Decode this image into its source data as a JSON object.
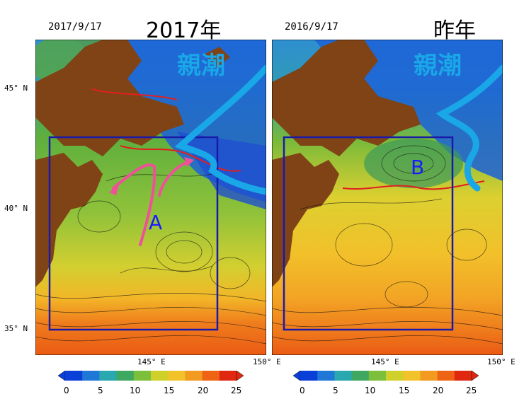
{
  "panels": [
    {
      "date": "2017/9/17",
      "title": "2017年",
      "current_label": "親潮",
      "marker": "A",
      "marker_color": "#1a1aff",
      "lat_labels": [
        "45° N",
        "40° N",
        "35° N"
      ],
      "lon_labels": [
        "145° E",
        "150° E"
      ]
    },
    {
      "date": "2016/9/17",
      "title": "昨年",
      "current_label": "親潮",
      "marker": "B",
      "marker_color": "#1a1aff",
      "lat_labels": [],
      "lon_labels": [
        "145° E",
        "150° E"
      ]
    }
  ],
  "colorbar": {
    "ticks": [
      "0",
      "5",
      "10",
      "15",
      "20",
      "25"
    ],
    "min": 0,
    "max": 25,
    "colors": [
      "#0a3fd8",
      "#1f77d6",
      "#2aa8b0",
      "#3fa860",
      "#7bbf3a",
      "#cfd02a",
      "#f1c22a",
      "#f39a20",
      "#ee6414",
      "#e02810"
    ]
  },
  "colors": {
    "land": "#7f4316",
    "current_arrow": "#19a7e8",
    "pink_arrow": "#f0509a",
    "box": "#1a1aaa",
    "contour": "#e02020"
  }
}
